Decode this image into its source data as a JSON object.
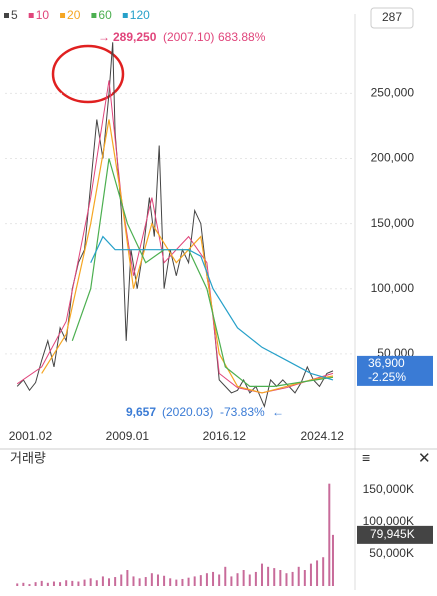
{
  "badge": "287",
  "chart_data": [
    {
      "type": "line",
      "xlim": [
        1999,
        2027.6
      ],
      "xticks": [
        {
          "value": 2001.08,
          "label": "2001.02"
        },
        {
          "value": 2009.0,
          "label": "2009.01"
        },
        {
          "value": 2016.92,
          "label": "2016.12"
        },
        {
          "value": 2024.92,
          "label": "2024.12"
        }
      ],
      "ylim": [
        -8500,
        311000
      ],
      "yticks": [
        {
          "value": 50000,
          "label": "50,000"
        },
        {
          "value": 100000,
          "label": "100,000"
        },
        {
          "value": 150000,
          "label": "150,000"
        },
        {
          "value": 200000,
          "label": "200,000"
        },
        {
          "value": 250000,
          "label": "250,000"
        }
      ],
      "grid": true,
      "series": [
        {
          "name": "5",
          "color": "#444444",
          "x": [
            2000.0,
            2000.5,
            2001.0,
            2001.5,
            2002.0,
            2002.5,
            2003.0,
            2003.5,
            2004.0,
            2004.5,
            2005.0,
            2005.5,
            2006.0,
            2006.5,
            2007.0,
            2007.5,
            2007.8,
            2008.0,
            2008.5,
            2008.9,
            2009.3,
            2009.8,
            2010.3,
            2010.8,
            2011.2,
            2011.6,
            2012.0,
            2012.5,
            2013.0,
            2013.5,
            2014.0,
            2014.5,
            2015.0,
            2015.5,
            2016.0,
            2016.5,
            2017.0,
            2017.5,
            2018.0,
            2018.5,
            2019.0,
            2019.5,
            2020.2,
            2020.7,
            2021.2,
            2021.7,
            2022.2,
            2022.7,
            2023.2,
            2023.7,
            2024.2,
            2024.7,
            2025.3,
            2025.8
          ],
          "values": [
            25000,
            30000,
            22000,
            28000,
            45000,
            60000,
            40000,
            70000,
            60000,
            100000,
            120000,
            130000,
            180000,
            230000,
            200000,
            250000,
            289250,
            220000,
            160000,
            60000,
            130000,
            100000,
            130000,
            170000,
            140000,
            210000,
            100000,
            130000,
            110000,
            130000,
            120000,
            160000,
            150000,
            110000,
            80000,
            30000,
            25000,
            20000,
            22000,
            30000,
            20000,
            25000,
            9657,
            30000,
            25000,
            30000,
            25000,
            20000,
            28000,
            40000,
            30000,
            25000,
            35000,
            36900
          ]
        },
        {
          "name": "10",
          "color": "#e0457b",
          "x": [
            2000,
            2002,
            2004,
            2006,
            2007.5,
            2008.5,
            2009.5,
            2011,
            2012,
            2014,
            2015.5,
            2016.5,
            2018,
            2020,
            2022,
            2024,
            2025.8
          ],
          "values": [
            27000,
            40000,
            75000,
            170000,
            260000,
            170000,
            110000,
            170000,
            120000,
            140000,
            120000,
            35000,
            24000,
            20000,
            24000,
            30000,
            35000
          ]
        },
        {
          "name": "20",
          "color": "#f5a623",
          "x": [
            2002,
            2004,
            2006,
            2007.5,
            2008.5,
            2009.5,
            2011,
            2013,
            2015,
            2016.5,
            2018,
            2020,
            2022,
            2024,
            2025.8
          ],
          "values": [
            35000,
            65000,
            150000,
            230000,
            170000,
            100000,
            150000,
            120000,
            140000,
            50000,
            25000,
            20000,
            25000,
            30000,
            33000
          ]
        },
        {
          "name": "60",
          "color": "#4caf50",
          "x": [
            2004.5,
            2006,
            2007.5,
            2009,
            2010.5,
            2012,
            2014,
            2015.5,
            2017,
            2019,
            2021,
            2023,
            2025.8
          ],
          "values": [
            60000,
            100000,
            200000,
            150000,
            120000,
            130000,
            130000,
            100000,
            40000,
            25000,
            25000,
            28000,
            32000
          ]
        },
        {
          "name": "120",
          "color": "#26a0c9",
          "x": [
            2006,
            2007,
            2008,
            2009,
            2010,
            2012,
            2014,
            2015,
            2016,
            2018,
            2020,
            2022,
            2024,
            2025.8
          ],
          "values": [
            120000,
            140000,
            130000,
            130000,
            130000,
            130000,
            130000,
            125000,
            100000,
            70000,
            55000,
            45000,
            35000,
            30000
          ]
        }
      ],
      "high": {
        "price": "289,250",
        "date": "(2007.10)",
        "change": "683.88%"
      },
      "low": {
        "price": "9,657",
        "date": "(2020.03)",
        "change": "-73.83%"
      },
      "last": {
        "value": 36900,
        "label": "36,900",
        "change": "-2.25%"
      }
    },
    {
      "type": "bar",
      "title": "거래량",
      "color": "#c86b9a",
      "xlim": [
        1999,
        2027.6
      ],
      "ylim": [
        0,
        197000
      ],
      "yticks": [
        {
          "value": 50000,
          "label": "50,000K"
        },
        {
          "value": 100000,
          "label": "100,000K"
        },
        {
          "value": 150000,
          "label": "150,000K"
        }
      ],
      "x": [
        2000,
        2000.5,
        2001,
        2001.5,
        2002,
        2002.5,
        2003,
        2003.5,
        2004,
        2004.5,
        2005,
        2005.5,
        2006,
        2006.5,
        2007,
        2007.5,
        2008,
        2008.5,
        2009,
        2009.5,
        2010,
        2010.5,
        2011,
        2011.5,
        2012,
        2012.5,
        2013,
        2013.5,
        2014,
        2014.5,
        2015,
        2015.5,
        2016,
        2016.5,
        2017,
        2017.5,
        2018,
        2018.5,
        2019,
        2019.5,
        2020,
        2020.5,
        2021,
        2021.5,
        2022,
        2022.5,
        2023,
        2023.5,
        2024,
        2024.5,
        2025,
        2025.5,
        2025.8
      ],
      "values": [
        4000,
        5000,
        3000,
        6000,
        8000,
        5000,
        7000,
        6000,
        9000,
        8000,
        7000,
        10000,
        12000,
        9000,
        15000,
        12000,
        14000,
        18000,
        25000,
        15000,
        12000,
        14000,
        20000,
        18000,
        16000,
        12000,
        10000,
        11000,
        13000,
        15000,
        17000,
        20000,
        22000,
        18000,
        30000,
        15000,
        20000,
        25000,
        18000,
        22000,
        35000,
        30000,
        28000,
        25000,
        20000,
        22000,
        30000,
        25000,
        35000,
        40000,
        45000,
        160000,
        79945
      ],
      "last": {
        "value": 79945,
        "label": "79,945K"
      }
    }
  ]
}
